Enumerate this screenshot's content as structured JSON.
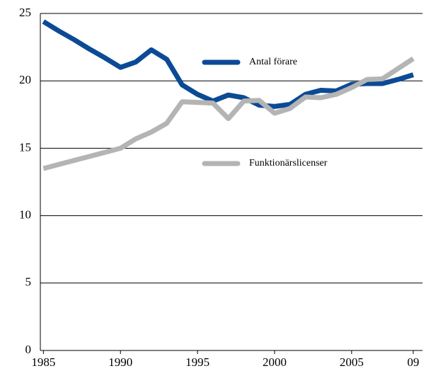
{
  "chart_data": {
    "type": "line",
    "x": [
      1985,
      1986,
      1987,
      1988,
      1989,
      1990,
      1991,
      1992,
      1993,
      1994,
      1995,
      1996,
      1997,
      1998,
      1999,
      2000,
      2001,
      2002,
      2003,
      2004,
      2005,
      2006,
      2007,
      2008,
      2009
    ],
    "series": [
      {
        "name": "Antal förare",
        "color": "#0b4a95",
        "values": [
          24.4,
          23.7,
          23.05,
          22.35,
          21.7,
          21.0,
          21.4,
          22.3,
          21.6,
          19.7,
          19.0,
          18.5,
          18.95,
          18.75,
          18.2,
          18.1,
          18.25,
          19.0,
          19.3,
          19.25,
          19.75,
          19.8,
          19.8,
          20.1,
          20.45
        ]
      },
      {
        "name": "Funktionärslicenser",
        "color": "#b4b4b4",
        "values": [
          13.5,
          13.8,
          14.1,
          14.4,
          14.7,
          15.0,
          15.7,
          16.2,
          16.85,
          18.45,
          18.4,
          18.35,
          17.2,
          18.5,
          18.55,
          17.6,
          17.95,
          18.8,
          18.75,
          19.0,
          19.5,
          20.1,
          20.15,
          20.9,
          21.65
        ]
      }
    ],
    "xlim": [
      1984.8,
      2009.6
    ],
    "xticks": [
      1985,
      1990,
      1995,
      2000,
      2005,
      {
        "value": 2009,
        "label": "09"
      }
    ],
    "ylim": [
      0,
      25
    ],
    "yticks": [
      0,
      5,
      10,
      15,
      20,
      25
    ],
    "grid": true
  }
}
